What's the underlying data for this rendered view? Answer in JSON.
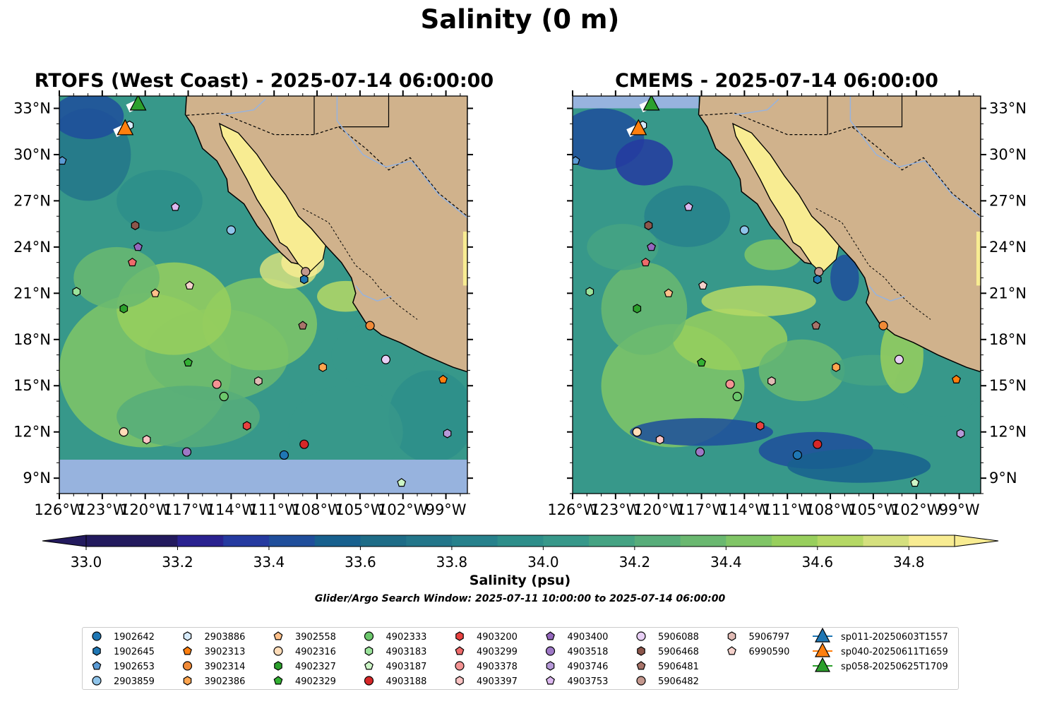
{
  "title": "Salinity (0 m)",
  "panels": [
    {
      "title": "RTOFS (West Coast) - 2025-07-14 06:00:00"
    },
    {
      "title": "CMEMS - 2025-07-14 06:00:00"
    }
  ],
  "map": {
    "lon_range": [
      -126,
      -97.5
    ],
    "lat_range": [
      8,
      33.8
    ],
    "lon_ticks": [
      "126°W",
      "123°W",
      "120°W",
      "117°W",
      "114°W",
      "111°W",
      "108°W",
      "105°W",
      "102°W",
      "99°W"
    ],
    "lat_ticks": [
      "9°N",
      "12°N",
      "15°N",
      "18°N",
      "21°N",
      "24°N",
      "27°N",
      "30°N",
      "33°N"
    ],
    "colors": {
      "land": "#d0b28c",
      "ocean_fill": "#97b3de",
      "gulf": "#f8ec92",
      "rivers": "#97b3de"
    }
  },
  "colorbar": {
    "label": "Salinity (psu)",
    "range": [
      33.0,
      34.9
    ],
    "tick_labels": [
      "33.0",
      "33.2",
      "33.4",
      "33.6",
      "33.8",
      "34.0",
      "34.2",
      "34.4",
      "34.6",
      "34.8"
    ],
    "colors": [
      "#231a5e",
      "#2a2290",
      "#253aa0",
      "#1f4e9b",
      "#17608e",
      "#1e6c87",
      "#23768a",
      "#27818c",
      "#2d8e8a",
      "#37988a",
      "#45a383",
      "#57ad7a",
      "#6ab870",
      "#80c566",
      "#98cf5d",
      "#b5d865",
      "#d5e07e",
      "#f8ec92"
    ]
  },
  "search_window": "Glider/Argo Search Window: 2025-07-11 10:00:00 to 2025-07-14 06:00:00",
  "legend": {
    "floats": [
      {
        "id": "1902642",
        "marker": "circle",
        "color": "#1f77b4"
      },
      {
        "id": "1902645",
        "marker": "hexagon",
        "color": "#1f77b4"
      },
      {
        "id": "1902653",
        "marker": "pentagon",
        "color": "#5b9bd5"
      },
      {
        "id": "2903859",
        "marker": "circle",
        "color": "#8fc4ea"
      },
      {
        "id": "2903886",
        "marker": "hexagon",
        "color": "#d6eafa"
      },
      {
        "id": "3902313",
        "marker": "pentagon",
        "color": "#ff7f0e"
      },
      {
        "id": "3902314",
        "marker": "circle",
        "color": "#f08a37"
      },
      {
        "id": "3902386",
        "marker": "hexagon",
        "color": "#ffa54f"
      },
      {
        "id": "3902558",
        "marker": "pentagon",
        "color": "#ffc08a"
      },
      {
        "id": "4902316",
        "marker": "circle",
        "color": "#ffdcb8"
      },
      {
        "id": "4902327",
        "marker": "hexagon",
        "color": "#2ca02c"
      },
      {
        "id": "4902329",
        "marker": "pentagon",
        "color": "#33b033"
      },
      {
        "id": "4902333",
        "marker": "circle",
        "color": "#6cc76c"
      },
      {
        "id": "4903183",
        "marker": "hexagon",
        "color": "#9be39b"
      },
      {
        "id": "4903187",
        "marker": "pentagon",
        "color": "#ccf5c6"
      },
      {
        "id": "4903188",
        "marker": "circle",
        "color": "#d62728"
      },
      {
        "id": "4903200",
        "marker": "hexagon",
        "color": "#e8413f"
      },
      {
        "id": "4903299",
        "marker": "pentagon",
        "color": "#ee6b6b"
      },
      {
        "id": "4903378",
        "marker": "circle",
        "color": "#f49393"
      },
      {
        "id": "4903397",
        "marker": "hexagon",
        "color": "#fbc4c4"
      },
      {
        "id": "4903400",
        "marker": "pentagon",
        "color": "#9467bd"
      },
      {
        "id": "4903518",
        "marker": "circle",
        "color": "#9e78c6"
      },
      {
        "id": "4903746",
        "marker": "hexagon",
        "color": "#b699d8"
      },
      {
        "id": "4903753",
        "marker": "pentagon",
        "color": "#dcb8f0"
      },
      {
        "id": "5906088",
        "marker": "circle",
        "color": "#e8cff5"
      },
      {
        "id": "5906468",
        "marker": "hexagon",
        "color": "#8c564b"
      },
      {
        "id": "5906481",
        "marker": "pentagon",
        "color": "#a8746a"
      },
      {
        "id": "5906482",
        "marker": "circle",
        "color": "#c4988e"
      },
      {
        "id": "5906797",
        "marker": "hexagon",
        "color": "#e0bab4"
      },
      {
        "id": "6990590",
        "marker": "pentagon",
        "color": "#f5d2cc"
      }
    ],
    "gliders": [
      {
        "id": "sp011-20250603T1557",
        "color": "#1f77b4"
      },
      {
        "id": "sp040-20250611T1659",
        "color": "#ff7f0e"
      },
      {
        "id": "sp058-20250625T1709",
        "color": "#2ca02c"
      }
    ]
  },
  "observations": [
    {
      "id": "1902653",
      "lon": -125.8,
      "lat": 29.6
    },
    {
      "id": "2903886",
      "lon": -121.1,
      "lat": 31.9
    },
    {
      "id": "4903753",
      "lon": -117.9,
      "lat": 26.6
    },
    {
      "id": "5906468",
      "lon": -120.7,
      "lat": 25.4
    },
    {
      "id": "4903400",
      "lon": -120.5,
      "lat": 24.0
    },
    {
      "id": "4903299",
      "lon": -120.9,
      "lat": 23.0
    },
    {
      "id": "2903859",
      "lon": -114.0,
      "lat": 25.1
    },
    {
      "id": "5906482",
      "lon": -108.8,
      "lat": 22.4
    },
    {
      "id": "1902645",
      "lon": -108.9,
      "lat": 21.9
    },
    {
      "id": "4903183",
      "lon": -124.8,
      "lat": 21.1
    },
    {
      "id": "3902558",
      "lon": -119.3,
      "lat": 21.0
    },
    {
      "id": "6990590",
      "lon": -116.9,
      "lat": 21.5
    },
    {
      "id": "4902327",
      "lon": -121.5,
      "lat": 20.0
    },
    {
      "id": "5906481",
      "lon": -109.0,
      "lat": 18.9
    },
    {
      "id": "3902314",
      "lon": -104.3,
      "lat": 18.9
    },
    {
      "id": "4902329",
      "lon": -117.0,
      "lat": 16.5
    },
    {
      "id": "3902386",
      "lon": -107.6,
      "lat": 16.2
    },
    {
      "id": "5906088",
      "lon": -103.2,
      "lat": 16.7
    },
    {
      "id": "3902313",
      "lon": -99.2,
      "lat": 15.4
    },
    {
      "id": "4903378",
      "lon": -115.0,
      "lat": 15.1
    },
    {
      "id": "5906797",
      "lon": -112.1,
      "lat": 15.3
    },
    {
      "id": "4902333",
      "lon": -114.5,
      "lat": 14.3
    },
    {
      "id": "4903200",
      "lon": -112.9,
      "lat": 12.4
    },
    {
      "id": "4902316",
      "lon": -121.5,
      "lat": 12.0
    },
    {
      "id": "4903397",
      "lon": -119.9,
      "lat": 11.5
    },
    {
      "id": "4903518",
      "lon": -117.1,
      "lat": 10.7
    },
    {
      "id": "1902642",
      "lon": -110.3,
      "lat": 10.5
    },
    {
      "id": "4903188",
      "lon": -108.9,
      "lat": 11.2
    },
    {
      "id": "4903746",
      "lon": -98.9,
      "lat": 11.9
    },
    {
      "id": "4903187",
      "lon": -102.1,
      "lat": 8.7
    }
  ],
  "glider_positions": [
    {
      "id": "sp040-20250611T1659",
      "lon": -121.4,
      "lat": 31.7
    },
    {
      "id": "sp058-20250625T1709",
      "lon": -120.5,
      "lat": 33.3
    }
  ]
}
